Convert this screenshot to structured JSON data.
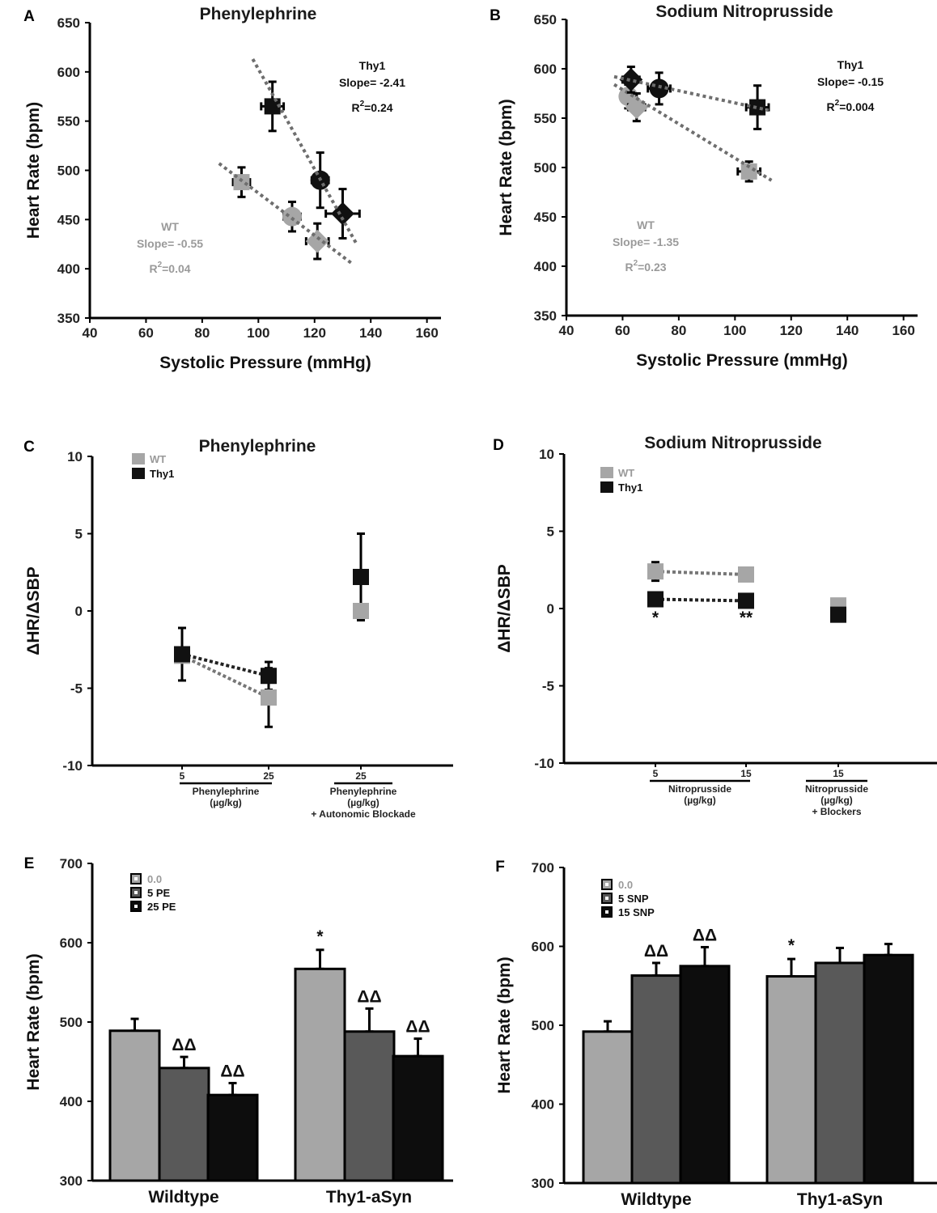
{
  "colors": {
    "wt": "#a6a6a6",
    "thy1": "#111111",
    "mid": "#595959",
    "light": "#a6a6a6",
    "dark": "#0d0d0d",
    "trend": "#6e6e6e",
    "axis": "#000000"
  },
  "chart_data": [
    {
      "id": "A",
      "panel_label": "A",
      "type": "scatter",
      "title": "Phenylephrine",
      "xlabel": "Systolic Pressure (mmHg)",
      "ylabel": "Heart Rate (bpm)",
      "xlim": [
        40,
        165
      ],
      "ylim": [
        350,
        650
      ],
      "xticks": [
        40,
        60,
        80,
        100,
        120,
        140,
        160
      ],
      "yticks": [
        350,
        400,
        450,
        500,
        550,
        600,
        650
      ],
      "series": [
        {
          "name": "WT",
          "color": "light",
          "points": [
            {
              "x": 94,
              "y": 488,
              "xerr": 3,
              "yerr": 15,
              "marker": "square"
            },
            {
              "x": 112,
              "y": 453,
              "xerr": 3,
              "yerr": 15,
              "marker": "circle"
            },
            {
              "x": 121,
              "y": 428,
              "xerr": 4,
              "yerr": 18,
              "marker": "diamond"
            }
          ],
          "trend": {
            "x": [
              86,
              133
            ],
            "y": [
              507,
              406
            ]
          },
          "annotation": {
            "name": "WT",
            "slope": "Slope= -0.55",
            "r2": "R",
            "r2_sup": "2",
            "r2_val": "=0.04"
          }
        },
        {
          "name": "Thy1",
          "color": "thy1",
          "points": [
            {
              "x": 105,
              "y": 565,
              "xerr": 4,
              "yerr": 25,
              "marker": "square"
            },
            {
              "x": 122,
              "y": 490,
              "xerr": 3,
              "yerr": 28,
              "marker": "circle"
            },
            {
              "x": 130,
              "y": 456,
              "xerr": 6,
              "yerr": 25,
              "marker": "diamond"
            }
          ],
          "trend": {
            "x": [
              98,
              135
            ],
            "y": [
              613,
              425
            ]
          },
          "annotation": {
            "name": "Thy1",
            "slope": "Slope= -2.41",
            "r2": "R",
            "r2_sup": "2",
            "r2_val": "=0.24"
          }
        }
      ]
    },
    {
      "id": "B",
      "panel_label": "B",
      "type": "scatter",
      "title": "Sodium Nitroprusside",
      "xlabel": "Systolic Pressure (mmHg)",
      "ylabel": "Heart Rate (bpm)",
      "xlim": [
        40,
        165
      ],
      "ylim": [
        350,
        650
      ],
      "xticks": [
        40,
        60,
        80,
        100,
        120,
        140,
        160
      ],
      "yticks": [
        350,
        400,
        450,
        500,
        550,
        600,
        650
      ],
      "series": [
        {
          "name": "WT",
          "color": "light",
          "points": [
            {
              "x": 62,
              "y": 572,
              "xerr": 2,
              "yerr": 12,
              "marker": "circle"
            },
            {
              "x": 65,
              "y": 561,
              "xerr": 3,
              "yerr": 14,
              "marker": "diamond"
            },
            {
              "x": 105,
              "y": 496,
              "xerr": 4,
              "yerr": 10,
              "marker": "square"
            }
          ],
          "trend": {
            "x": [
              57,
              113
            ],
            "y": [
              584,
              487
            ]
          },
          "annotation": {
            "name": "WT",
            "slope": "Slope= -1.35",
            "r2": "R",
            "r2_sup": "2",
            "r2_val": "=0.23"
          }
        },
        {
          "name": "Thy1",
          "color": "thy1",
          "points": [
            {
              "x": 63,
              "y": 589,
              "xerr": 3,
              "yerr": 13,
              "marker": "diamond"
            },
            {
              "x": 73,
              "y": 580,
              "xerr": 4,
              "yerr": 16,
              "marker": "circle"
            },
            {
              "x": 108,
              "y": 561,
              "xerr": 4,
              "yerr": 22,
              "marker": "square"
            }
          ],
          "trend": {
            "x": [
              57,
              112
            ],
            "y": [
              592,
              558
            ]
          },
          "annotation": {
            "name": "Thy1",
            "slope": "Slope= -0.15",
            "r2": "R",
            "r2_sup": "2",
            "r2_val": "=0.004"
          }
        }
      ]
    },
    {
      "id": "C",
      "panel_label": "C",
      "type": "scatter",
      "title": "Phenylephrine",
      "ylabel": "ΔHR/ΔSBP",
      "ylim": [
        -10,
        10
      ],
      "yticks": [
        -10,
        -5,
        0,
        5,
        10
      ],
      "legend": [
        {
          "label": "WT",
          "color": "light"
        },
        {
          "label": "Thy1",
          "color": "thy1"
        }
      ],
      "categories": [
        {
          "tick": "5",
          "x": 225
        },
        {
          "tick": "25",
          "x": 332
        },
        {
          "tick": "25",
          "x": 446
        }
      ],
      "groups": [
        {
          "lines": [
            "Phenylephrine",
            "(µg/kg)"
          ],
          "x1": 222,
          "x2": 336
        },
        {
          "lines": [
            "Phenylephrine",
            "(µg/kg)",
            "+ Autonomic Blockade"
          ],
          "x1": 413,
          "x2": 485
        }
      ],
      "series": [
        {
          "name": "WT",
          "color": "light",
          "values": [
            -2.9,
            -5.6,
            0.0
          ],
          "errors": [
            0,
            1.9,
            0
          ],
          "connect": [
            0,
            1
          ]
        },
        {
          "name": "Thy1",
          "color": "thy1",
          "values": [
            -2.8,
            -4.2,
            2.2
          ],
          "errors": [
            1.7,
            0.9,
            2.8
          ],
          "connect": [
            0,
            1
          ]
        }
      ]
    },
    {
      "id": "D",
      "panel_label": "D",
      "type": "scatter",
      "title": "Sodium Nitroprusside",
      "ylabel": "ΔHR/ΔSBP",
      "ylim": [
        -10,
        10
      ],
      "yticks": [
        -10,
        -5,
        0,
        5,
        10
      ],
      "legend": [
        {
          "label": "WT",
          "color": "light"
        },
        {
          "label": "Thy1",
          "color": "thy1"
        }
      ],
      "categories": [
        {
          "tick": "5",
          "x": 810
        },
        {
          "tick": "15",
          "x": 922
        },
        {
          "tick": "15",
          "x": 1036
        }
      ],
      "groups": [
        {
          "lines": [
            "Nitroprusside",
            "(µg/kg)"
          ],
          "x1": 803,
          "x2": 927
        },
        {
          "lines": [
            "Nitroprusside",
            "(µg/kg)",
            "+ Blockers"
          ],
          "x1": 996,
          "x2": 1072
        }
      ],
      "series": [
        {
          "name": "WT",
          "color": "light",
          "values": [
            2.4,
            2.2,
            0.2
          ],
          "errors": [
            0.6,
            0.3,
            0
          ],
          "connect": [
            0,
            1
          ]
        },
        {
          "name": "Thy1",
          "color": "thy1",
          "values": [
            0.6,
            0.5,
            -0.4
          ],
          "errors": [
            0,
            0,
            0
          ],
          "connect": [
            0,
            1
          ]
        }
      ],
      "significance": [
        {
          "index": 0,
          "mark": "*"
        },
        {
          "index": 1,
          "mark": "**"
        }
      ]
    },
    {
      "id": "E",
      "panel_label": "E",
      "type": "bar",
      "ylabel": "Heart Rate (bpm)",
      "ylim": [
        300,
        700
      ],
      "yticks": [
        300,
        400,
        500,
        600,
        700
      ],
      "categories": [
        "Wildtype",
        "Thy1-aSyn"
      ],
      "legend": [
        {
          "label": "0.0",
          "color": "light"
        },
        {
          "label": "5 PE",
          "color": "mid"
        },
        {
          "label": "25 PE",
          "color": "dark"
        }
      ],
      "series": [
        {
          "name": "0.0",
          "color": "light",
          "values": [
            489,
            567
          ],
          "errors": [
            15,
            24
          ],
          "marks": [
            "",
            "*"
          ]
        },
        {
          "name": "5 PE",
          "color": "mid",
          "values": [
            442,
            488
          ],
          "errors": [
            14,
            29
          ],
          "marks": [
            "ΔΔ",
            "ΔΔ"
          ]
        },
        {
          "name": "25 PE",
          "color": "dark",
          "values": [
            408,
            457
          ],
          "errors": [
            15,
            22
          ],
          "marks": [
            "ΔΔ",
            "ΔΔ"
          ]
        }
      ]
    },
    {
      "id": "F",
      "panel_label": "F",
      "type": "bar",
      "ylabel": "Heart Rate (bpm)",
      "ylim": [
        300,
        700
      ],
      "yticks": [
        300,
        400,
        500,
        600,
        700
      ],
      "categories": [
        "Wildtype",
        "Thy1-aSyn"
      ],
      "legend": [
        {
          "label": "0.0",
          "color": "light"
        },
        {
          "label": "5 SNP",
          "color": "mid"
        },
        {
          "label": "15 SNP",
          "color": "dark"
        }
      ],
      "series": [
        {
          "name": "0.0",
          "color": "light",
          "values": [
            492,
            562
          ],
          "errors": [
            13,
            22
          ],
          "marks": [
            "",
            "*"
          ]
        },
        {
          "name": "5 SNP",
          "color": "mid",
          "values": [
            563,
            579
          ],
          "errors": [
            16,
            19
          ],
          "marks": [
            "ΔΔ",
            ""
          ]
        },
        {
          "name": "15 SNP",
          "color": "dark",
          "values": [
            575,
            589
          ],
          "errors": [
            24,
            14
          ],
          "marks": [
            "ΔΔ",
            ""
          ]
        }
      ]
    }
  ]
}
